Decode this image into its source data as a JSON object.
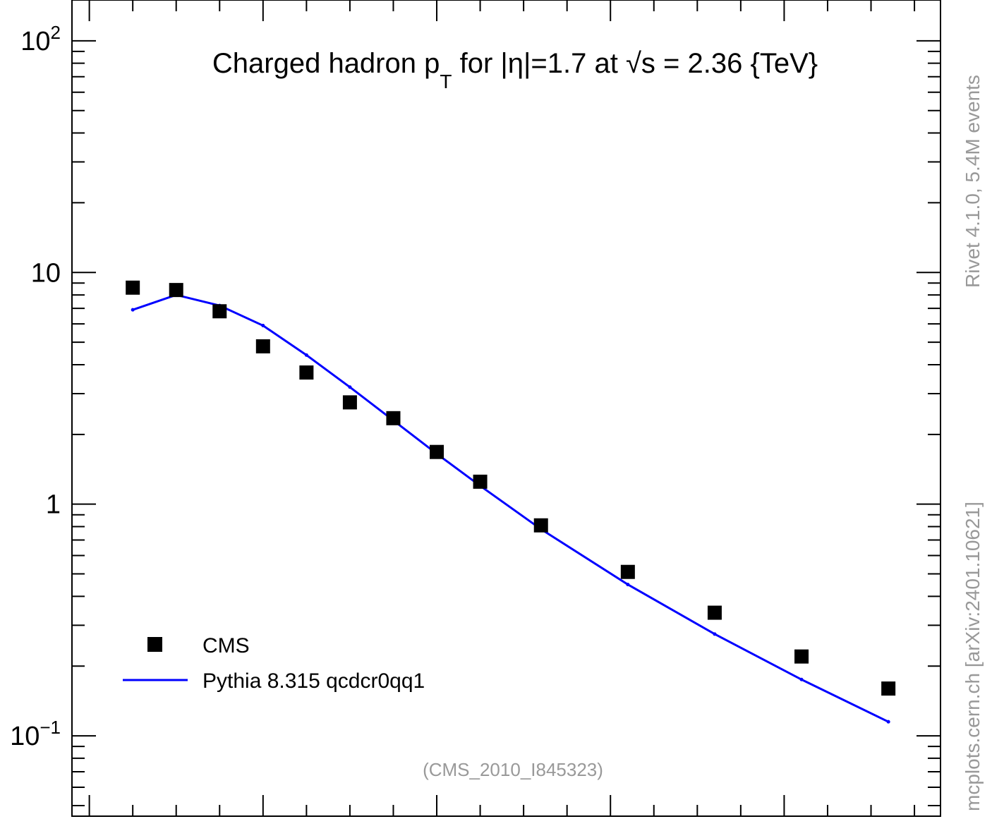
{
  "chart_data": {
    "type": "line",
    "title_main": "Charged hadron p",
    "title_sub": "T",
    "title_rest": " for |η|=1.7 at √s = 2.36 {TeV}",
    "yscale": "log",
    "ylim": [
      0.045,
      150
    ],
    "xlim": [
      -0.1,
      4.9
    ],
    "ytick_labels": [
      {
        "value": 100,
        "base": "10",
        "exp": "2"
      },
      {
        "value": 10,
        "base": "10",
        "exp": ""
      },
      {
        "value": 1,
        "base": "1",
        "exp": ""
      },
      {
        "value": 0.1,
        "base": "10",
        "exp": "−1"
      }
    ],
    "legend_position": "bottom-left",
    "series": [
      {
        "name": "CMS",
        "style": "markers",
        "color": "#000000",
        "x": [
          0.25,
          0.5,
          0.75,
          1.0,
          1.25,
          1.5,
          1.75,
          2.0,
          2.25,
          2.6,
          3.1,
          3.6,
          4.1,
          4.6
        ],
        "y": [
          8.6,
          8.4,
          6.8,
          4.8,
          3.7,
          2.75,
          2.35,
          1.68,
          1.25,
          0.81,
          0.51,
          0.34,
          0.22,
          0.16
        ]
      },
      {
        "name": "Pythia 8.315 qcdcr0qq1",
        "style": "line",
        "color": "#0000ff",
        "x": [
          0.25,
          0.5,
          0.75,
          1.0,
          1.25,
          1.5,
          1.75,
          2.0,
          2.25,
          2.6,
          3.1,
          3.6,
          4.1,
          4.6
        ],
        "y": [
          6.9,
          8.0,
          7.2,
          5.9,
          4.4,
          3.2,
          2.3,
          1.65,
          1.2,
          0.78,
          0.45,
          0.275,
          0.175,
          0.115
        ]
      }
    ],
    "watermark": "(CMS_2010_I845323)"
  },
  "side_labels": {
    "top": "Rivet 4.1.0,  5.4M events",
    "bottom": "mcplots.cern.ch [arXiv:2401.10621]"
  }
}
